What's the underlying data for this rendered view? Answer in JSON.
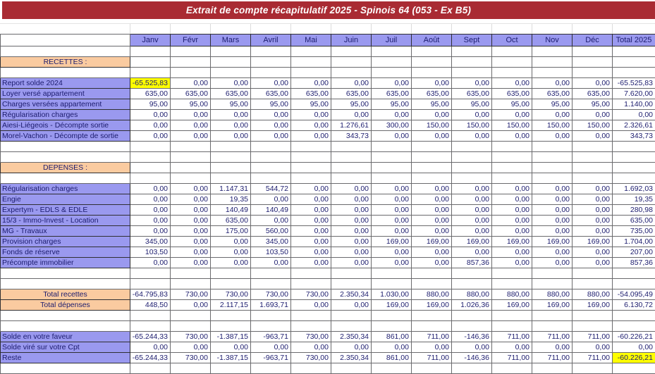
{
  "title": "Extrait de compte récapitulatif 2025 - Spinois 64 (053 - Ex B5)",
  "colors": {
    "title_bar": "#A92B33",
    "header_fill": "#9A99EF",
    "label_fill": "#9A99EF",
    "section_fill": "#FACBA0",
    "highlight_fill": "#FFFF00",
    "text": "#1C1C6E"
  },
  "table": {
    "columns": [
      "Janv",
      "Févr",
      "Mars",
      "Avril",
      "Mai",
      "Juin",
      "Juil",
      "Août",
      "Sept",
      "Oct",
      "Nov",
      "Déc",
      "Total 2025"
    ],
    "rows": [
      {
        "type": "spacer"
      },
      {
        "type": "section",
        "label": "RECETTES :"
      },
      {
        "type": "spacer"
      },
      {
        "type": "data",
        "label": "Report solde 2024",
        "values": [
          "-65.525,83",
          "0,00",
          "0,00",
          "0,00",
          "0,00",
          "0,00",
          "0,00",
          "0,00",
          "0,00",
          "0,00",
          "0,00",
          "0,00",
          "-65.525,83"
        ],
        "highlight": [
          0
        ]
      },
      {
        "type": "data",
        "label": "Loyer versé appartement",
        "values": [
          "635,00",
          "635,00",
          "635,00",
          "635,00",
          "635,00",
          "635,00",
          "635,00",
          "635,00",
          "635,00",
          "635,00",
          "635,00",
          "635,00",
          "7.620,00"
        ]
      },
      {
        "type": "data",
        "label": "Charges versées appartement",
        "values": [
          "95,00",
          "95,00",
          "95,00",
          "95,00",
          "95,00",
          "95,00",
          "95,00",
          "95,00",
          "95,00",
          "95,00",
          "95,00",
          "95,00",
          "1.140,00"
        ]
      },
      {
        "type": "data",
        "label": "Régularisation charges",
        "values": [
          "0,00",
          "0,00",
          "0,00",
          "0,00",
          "0,00",
          "0,00",
          "0,00",
          "0,00",
          "0,00",
          "0,00",
          "0,00",
          "0,00",
          "0,00"
        ]
      },
      {
        "type": "data",
        "label": "Aiesi-Liégeois - Décompte sortie",
        "values": [
          "0,00",
          "0,00",
          "0,00",
          "0,00",
          "0,00",
          "1.276,61",
          "300,00",
          "150,00",
          "150,00",
          "150,00",
          "150,00",
          "150,00",
          "2.326,61"
        ]
      },
      {
        "type": "data",
        "label": "Morel-Vachon - Décompte de sortie",
        "values": [
          "0,00",
          "0,00",
          "0,00",
          "0,00",
          "0,00",
          "343,73",
          "0,00",
          "0,00",
          "0,00",
          "0,00",
          "0,00",
          "0,00",
          "343,73"
        ]
      },
      {
        "type": "spacer"
      },
      {
        "type": "spacer"
      },
      {
        "type": "section",
        "label": "DEPENSES :"
      },
      {
        "type": "spacer"
      },
      {
        "type": "data",
        "label": "Régularisation charges",
        "values": [
          "0,00",
          "0,00",
          "1.147,31",
          "544,72",
          "0,00",
          "0,00",
          "0,00",
          "0,00",
          "0,00",
          "0,00",
          "0,00",
          "0,00",
          "1.692,03"
        ]
      },
      {
        "type": "data",
        "label": "Engie",
        "values": [
          "0,00",
          "0,00",
          "19,35",
          "0,00",
          "0,00",
          "0,00",
          "0,00",
          "0,00",
          "0,00",
          "0,00",
          "0,00",
          "0,00",
          "19,35"
        ]
      },
      {
        "type": "data",
        "label": "Expertym - EDLS & EDLE",
        "values": [
          "0,00",
          "0,00",
          "140,49",
          "140,49",
          "0,00",
          "0,00",
          "0,00",
          "0,00",
          "0,00",
          "0,00",
          "0,00",
          "0,00",
          "280,98"
        ]
      },
      {
        "type": "data",
        "label": "15/3 - Immo-Invest - Location",
        "values": [
          "0,00",
          "0,00",
          "635,00",
          "0,00",
          "0,00",
          "0,00",
          "0,00",
          "0,00",
          "0,00",
          "0,00",
          "0,00",
          "0,00",
          "635,00"
        ]
      },
      {
        "type": "data",
        "label": "MG - Travaux",
        "values": [
          "0,00",
          "0,00",
          "175,00",
          "560,00",
          "0,00",
          "0,00",
          "0,00",
          "0,00",
          "0,00",
          "0,00",
          "0,00",
          "0,00",
          "735,00"
        ]
      },
      {
        "type": "data",
        "label": "Provision charges",
        "values": [
          "345,00",
          "0,00",
          "0,00",
          "345,00",
          "0,00",
          "0,00",
          "169,00",
          "169,00",
          "169,00",
          "169,00",
          "169,00",
          "169,00",
          "1.704,00"
        ]
      },
      {
        "type": "data",
        "label": "Fonds de réserve",
        "values": [
          "103,50",
          "0,00",
          "0,00",
          "103,50",
          "0,00",
          "0,00",
          "0,00",
          "0,00",
          "0,00",
          "0,00",
          "0,00",
          "0,00",
          "207,00"
        ]
      },
      {
        "type": "data",
        "label": "Précompte immobilier",
        "values": [
          "0,00",
          "0,00",
          "0,00",
          "0,00",
          "0,00",
          "0,00",
          "0,00",
          "0,00",
          "857,36",
          "0,00",
          "0,00",
          "0,00",
          "857,36"
        ]
      },
      {
        "type": "spacer"
      },
      {
        "type": "spacer"
      },
      {
        "type": "total",
        "label": "Total recettes",
        "values": [
          "-64.795,83",
          "730,00",
          "730,00",
          "730,00",
          "730,00",
          "2.350,34",
          "1.030,00",
          "880,00",
          "880,00",
          "880,00",
          "880,00",
          "880,00",
          "-54.095,49"
        ]
      },
      {
        "type": "total",
        "label": "Total dépenses",
        "values": [
          "448,50",
          "0,00",
          "2.117,15",
          "1.693,71",
          "0,00",
          "0,00",
          "169,00",
          "169,00",
          "1.026,36",
          "169,00",
          "169,00",
          "169,00",
          "6.130,72"
        ]
      },
      {
        "type": "spacer"
      },
      {
        "type": "spacer"
      },
      {
        "type": "data",
        "label": "Solde en votre faveur",
        "values": [
          "-65.244,33",
          "730,00",
          "-1.387,15",
          "-963,71",
          "730,00",
          "2.350,34",
          "861,00",
          "711,00",
          "-146,36",
          "711,00",
          "711,00",
          "711,00",
          "-60.226,21"
        ]
      },
      {
        "type": "data",
        "label": "Solde viré sur votre Cpt",
        "values": [
          "0,00",
          "0,00",
          "0,00",
          "0,00",
          "0,00",
          "0,00",
          "0,00",
          "0,00",
          "0,00",
          "0,00",
          "0,00",
          "0,00",
          "0,00"
        ]
      },
      {
        "type": "data",
        "label": "Reste",
        "values": [
          "-65.244,33",
          "730,00",
          "-1.387,15",
          "-963,71",
          "730,00",
          "2.350,34",
          "861,00",
          "711,00",
          "-146,36",
          "711,00",
          "711,00",
          "711,00",
          "-60.226,21"
        ],
        "highlight": [
          12
        ]
      },
      {
        "type": "spacer"
      }
    ]
  }
}
